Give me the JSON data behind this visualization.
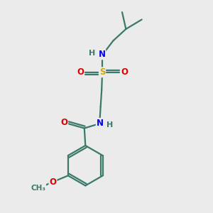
{
  "background_color": "#ebebeb",
  "bond_color": "#3a7a6a",
  "atom_colors": {
    "N": "#0000ee",
    "O": "#dd0000",
    "S": "#ccaa00",
    "C": "#3a7a6a",
    "H": "#3a7a6a"
  },
  "line_width": 1.6,
  "font_size_atom": 8.5,
  "font_size_h": 8.0
}
